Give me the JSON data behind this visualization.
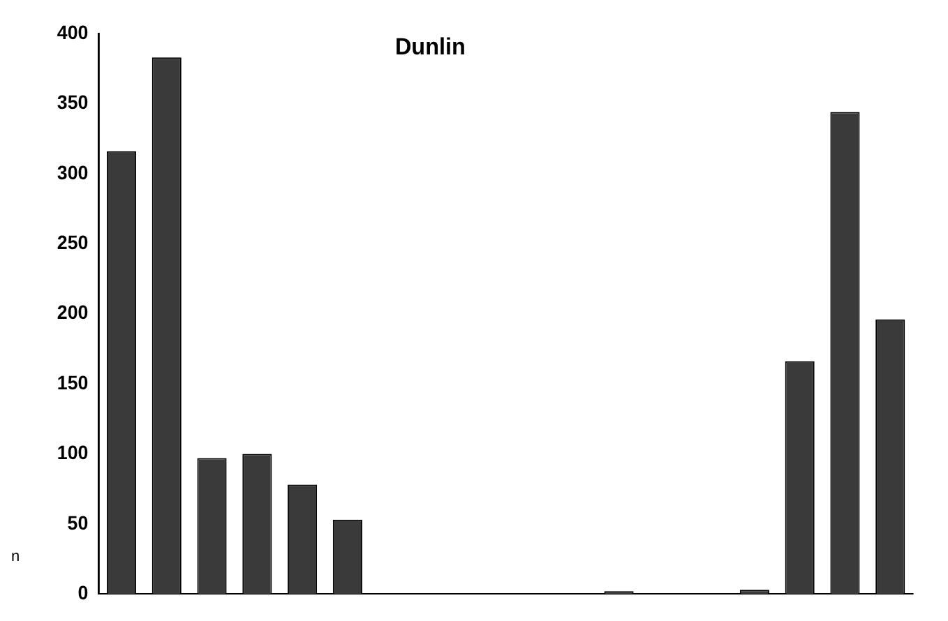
{
  "chart_data": {
    "type": "bar",
    "title": "Dunlin",
    "categories": [
      null,
      null,
      null,
      null,
      null,
      null,
      null,
      null,
      null,
      null,
      null,
      null,
      null,
      null,
      null,
      null,
      null,
      null
    ],
    "values": [
      316,
      383,
      97,
      100,
      78,
      53,
      0,
      0,
      0,
      0,
      0,
      2,
      0,
      0,
      3,
      166,
      344,
      196
    ],
    "color": "#3a3a3a",
    "ylim": [
      0,
      400
    ],
    "yticks": [
      0,
      50,
      100,
      150,
      200,
      250,
      300,
      350,
      400
    ],
    "grid": false,
    "legend": false,
    "annotations": [
      "n"
    ]
  }
}
